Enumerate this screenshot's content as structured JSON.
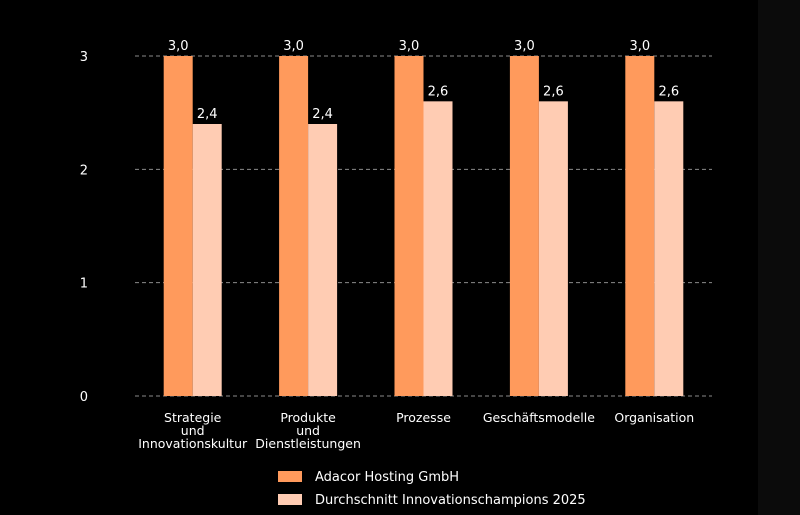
{
  "colors": {
    "background": "#000000",
    "series_1": "#ff9a5c",
    "series_2": "#ffccb3",
    "text": "#ffffff",
    "grid": "#8a8a8a"
  },
  "chart_data": {
    "type": "bar",
    "categories": [
      [
        "Strategie",
        "und",
        "Innovationskultur"
      ],
      [
        "Produkte",
        "und",
        "Dienstleistungen"
      ],
      [
        "Prozesse"
      ],
      [
        "Geschäftsmodelle"
      ],
      [
        "Organisation"
      ]
    ],
    "series": [
      {
        "name": "Adacor Hosting GmbH",
        "values": [
          3.0,
          3.0,
          3.0,
          3.0,
          3.0
        ],
        "labels": [
          "3,0",
          "3,0",
          "3,0",
          "3,0",
          "3,0"
        ]
      },
      {
        "name": "Durchschnitt Innovationschampions 2025",
        "values": [
          2.4,
          2.4,
          2.6,
          2.6,
          2.6
        ],
        "labels": [
          "2,4",
          "2,4",
          "2,6",
          "2,6",
          "2,6"
        ]
      }
    ],
    "yticks": [
      "0",
      "1",
      "2",
      "3"
    ],
    "ylim": [
      0,
      3
    ],
    "grid": true,
    "legend_position": "bottom-center"
  }
}
